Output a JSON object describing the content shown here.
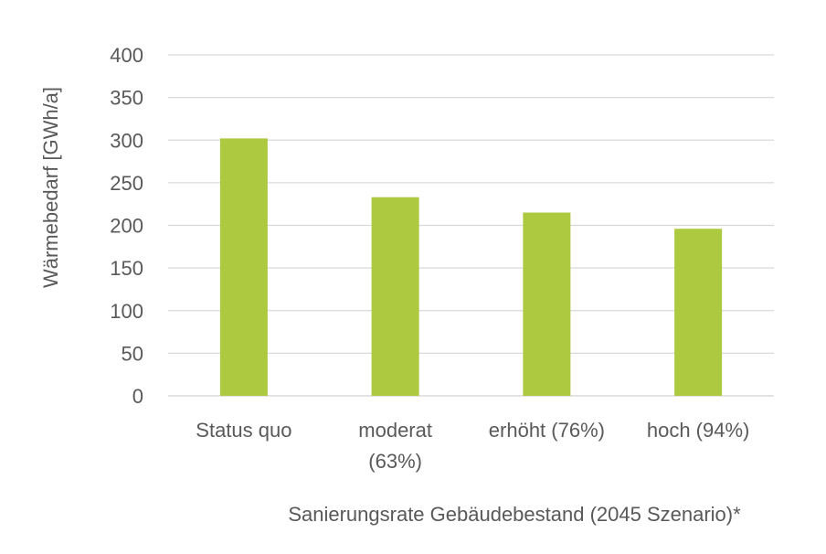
{
  "chart_data": {
    "type": "bar",
    "categories": [
      [
        "Status quo"
      ],
      [
        "moderat",
        "(63%)"
      ],
      [
        "erhöht (76%)"
      ],
      [
        "hoch (94%)"
      ]
    ],
    "values": [
      302,
      233,
      215,
      196
    ],
    "xlabel": "Sanierungsrate Gebäudebestand (2045 Szenario)*",
    "ylabel": "Wärmebedarf [GWh/a]",
    "ylim": [
      0,
      400
    ],
    "yticks": [
      0,
      50,
      100,
      150,
      200,
      250,
      300,
      350,
      400
    ],
    "grid": true,
    "bar_color": "#acc93f"
  }
}
